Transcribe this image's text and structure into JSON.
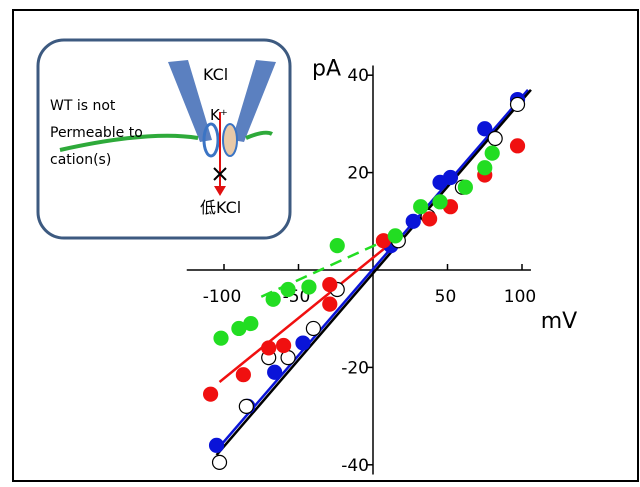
{
  "chart_data": {
    "type": "scatter",
    "xlabel": "mV",
    "ylabel": "pA",
    "xlim": [
      -125,
      106
    ],
    "ylim": [
      -42,
      42
    ],
    "xticks": [
      -100,
      -50,
      50,
      100
    ],
    "yticks": [
      -40,
      -20,
      20,
      40
    ],
    "series": [
      {
        "color": "#0a14d8",
        "edge_color": "#0a14d8",
        "x": [
          -105,
          -84,
          -66,
          -47,
          12,
          27,
          45,
          52,
          75,
          97
        ],
        "values": [
          -36,
          -28,
          -21,
          -15,
          5,
          10,
          18,
          19,
          29,
          35
        ],
        "fit_x": [
          -105,
          104
        ],
        "fit_y": [
          -37,
          37
        ],
        "dashed": false
      },
      {
        "color": "#ffffff",
        "edge_color": "#000000",
        "x": [
          -103,
          -85,
          -70,
          -57,
          -40,
          -24,
          17,
          37,
          60,
          82,
          97
        ],
        "values": [
          -39.5,
          -28,
          -18,
          -18,
          -12,
          -4,
          6,
          11,
          17,
          27,
          34
        ],
        "fit_x": [
          -105,
          106
        ],
        "fit_y": [
          -38,
          37
        ],
        "dashed": false
      },
      {
        "color": "#f01010",
        "edge_color": "#f01010",
        "x": [
          -109,
          -87,
          -70,
          -60,
          -29,
          -29,
          7,
          38,
          52,
          75,
          97
        ],
        "values": [
          -25.5,
          -21.5,
          -16,
          -15.5,
          -3,
          -7,
          6,
          10.5,
          13,
          19.5,
          25.5
        ],
        "fit_x": [
          -103,
          10
        ],
        "fit_y": [
          -23,
          5
        ],
        "dashed": false
      },
      {
        "color": "#22dd22",
        "edge_color": "#22dd22",
        "x": [
          -102,
          -90,
          -82,
          -67,
          -57,
          -43,
          -24,
          15,
          32,
          45,
          62,
          75,
          80
        ],
        "values": [
          -14,
          -12,
          -11,
          -6,
          -4,
          -3.5,
          5,
          7,
          13,
          14,
          17,
          21,
          24
        ],
        "fit_x": [
          -75,
          15
        ],
        "fit_y": [
          -5.5,
          7
        ],
        "dashed": true
      }
    ],
    "inset": {
      "pipette": "KCl",
      "ion": "K⁺",
      "note": [
        "WT is not",
        "Permeable to",
        "cation(s)"
      ],
      "bath": "低KCl"
    }
  }
}
